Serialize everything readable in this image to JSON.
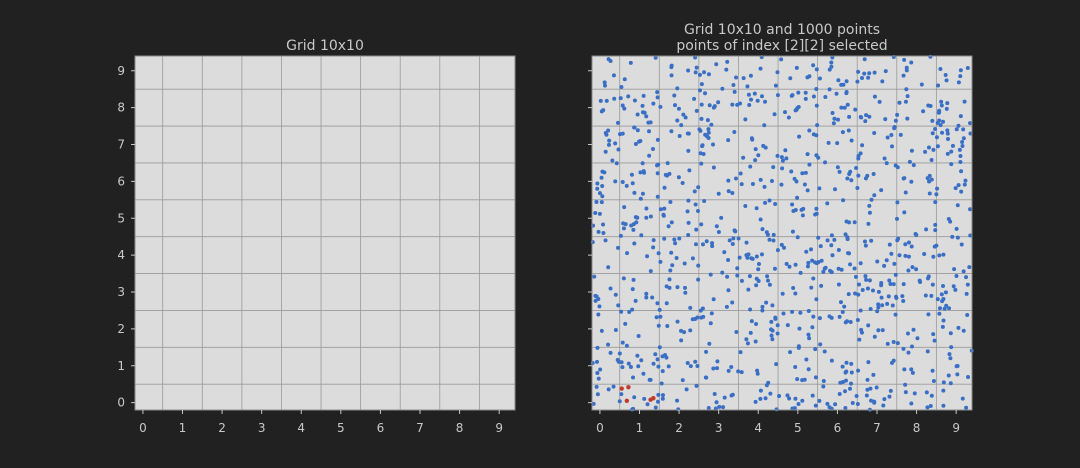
{
  "colors": {
    "figure_bg": "#212121",
    "axes_bg": "#dcdcdc",
    "grid_line": "#9a9a9a",
    "spine": "#8a8a8a",
    "text": "#c8c8c8",
    "point_color": "#3a6fc4",
    "selected_color": "#c0392b"
  },
  "chart_data": [
    {
      "type": "scatter",
      "title": "Grid 10x10",
      "xlabel": "",
      "ylabel": "",
      "xticks": [
        "0",
        "1",
        "2",
        "3",
        "4",
        "5",
        "6",
        "7",
        "8",
        "9"
      ],
      "yticks": [
        "0",
        "1",
        "2",
        "3",
        "4",
        "5",
        "6",
        "7",
        "8",
        "9"
      ],
      "xlim": [
        -0.2,
        9.4
      ],
      "ylim": [
        -0.2,
        9.4
      ],
      "grid": true,
      "grid_cells": 10,
      "series": []
    },
    {
      "type": "scatter",
      "title": "Grid 10x10 and 1000 points",
      "subtitle": "points of index [2][2] selected",
      "xlabel": "",
      "ylabel": "",
      "xticks": [
        "0",
        "1",
        "2",
        "3",
        "4",
        "5",
        "6",
        "7",
        "8",
        "9"
      ],
      "yticks": [],
      "xlim": [
        -0.2,
        9.4
      ],
      "ylim": [
        -0.2,
        9.4
      ],
      "grid": true,
      "grid_cells": 10,
      "points_count": 1000,
      "selected_cell": [
        2,
        2
      ],
      "selected_points": [
        {
          "x": 0.55,
          "y": 0.38
        },
        {
          "x": 0.72,
          "y": 0.42
        },
        {
          "x": 0.68,
          "y": 0.05
        },
        {
          "x": 1.28,
          "y": 0.08
        },
        {
          "x": 1.35,
          "y": 0.12
        }
      ]
    }
  ]
}
